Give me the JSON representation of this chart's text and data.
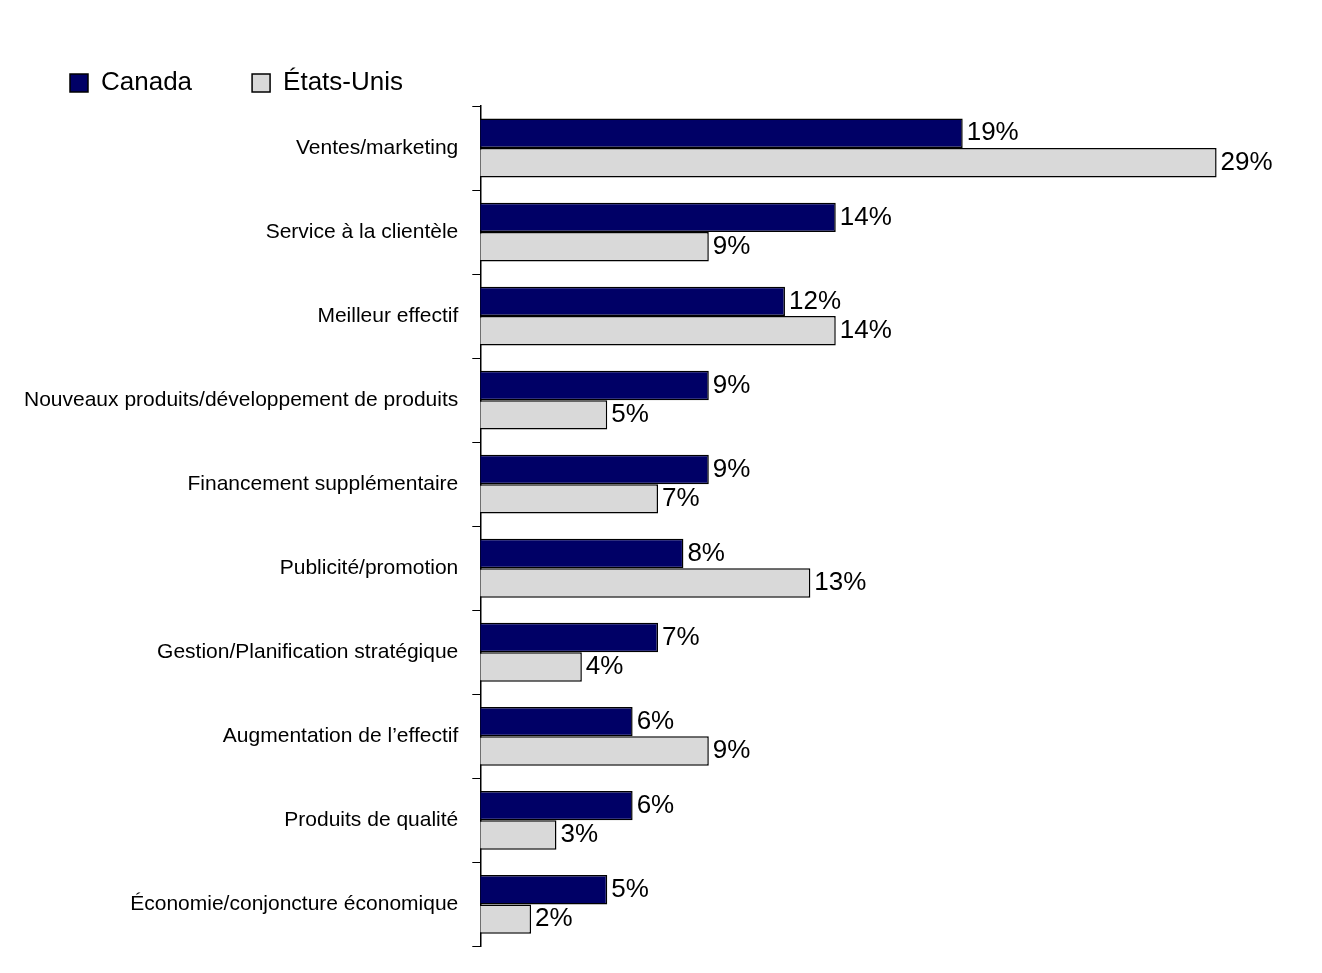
{
  "chart_data": {
    "type": "bar",
    "orientation": "horizontal",
    "legend": "top",
    "categories": [
      "Ventes/marketing",
      "Service à la clientèle",
      "Meilleur effectif",
      "Nouveaux produits/développement de produits",
      "Financement supplémentaire",
      "Publicité/promotion",
      "Gestion/Planification stratégique",
      "Augmentation de l’effectif",
      "Produits de qualité",
      "Économie/conjoncture économique"
    ],
    "series": [
      {
        "name": "Canada",
        "color": "#000066",
        "values": [
          19,
          14,
          12,
          9,
          9,
          8,
          7,
          6,
          6,
          5
        ],
        "value_labels": [
          "19%",
          "14%",
          "12%",
          "9%",
          "9%",
          "8%",
          "7%",
          "6%",
          "6%",
          "5%"
        ]
      },
      {
        "name": "États-Unis",
        "color": "#d9d9d9",
        "values": [
          29,
          9,
          14,
          5,
          7,
          13,
          4,
          9,
          3,
          2
        ],
        "value_labels": [
          "29%",
          "9%",
          "14%",
          "5%",
          "7%",
          "13%",
          "4%",
          "9%",
          "3%",
          "2%"
        ]
      }
    ]
  }
}
